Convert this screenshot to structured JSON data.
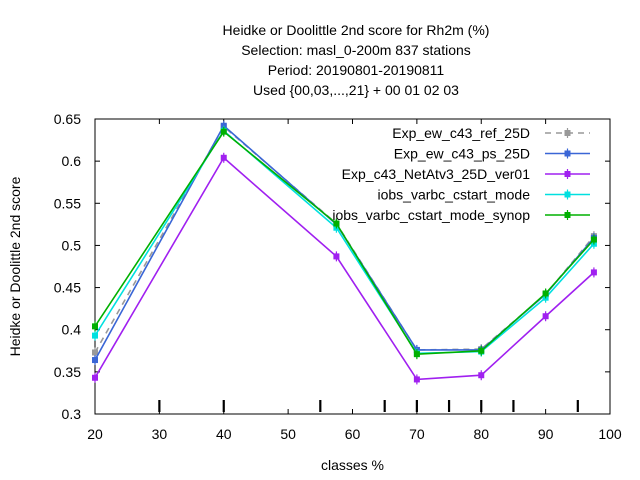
{
  "chart_data": {
    "type": "line",
    "title_lines": [
      "Heidke or Doolittle 2nd score  for Rh2m (%)",
      "Selection: masl_0-200m    837 stations",
      "Period: 20190801-20190811",
      "Used {00,03,...,21} + 00 01 02 03"
    ],
    "xlabel": "classes %",
    "ylabel": "Heidke or Doolittle 2nd score",
    "xlim": [
      20,
      100
    ],
    "ylim": [
      0.3,
      0.65
    ],
    "xticks": [
      20,
      30,
      40,
      50,
      60,
      70,
      80,
      90,
      100
    ],
    "yticks": [
      0.3,
      0.35,
      0.4,
      0.45,
      0.5,
      0.55,
      0.6,
      0.65
    ],
    "xtick_labels": [
      "20",
      "30",
      "40",
      "50",
      "60",
      "70",
      "80",
      "90",
      "100"
    ],
    "ytick_labels": [
      "0.3",
      "0.35",
      "0.4",
      "0.45",
      "0.5",
      "0.55",
      "0.6",
      "0.65"
    ],
    "bottom_marks": [
      30,
      40,
      55,
      65,
      70,
      75,
      80,
      85,
      95
    ],
    "grid": false,
    "legend_position": "top-right",
    "x": [
      20,
      40,
      57.5,
      70,
      80,
      90,
      97.5
    ],
    "series": [
      {
        "name": "Exp_ew_c43_ref_25D",
        "color": "#999999",
        "dashed": true,
        "values": [
          0.373,
          0.641,
          0.526,
          0.376,
          0.377,
          0.442,
          0.511
        ]
      },
      {
        "name": "Exp_ew_c43_ps_25D",
        "color": "#3a66d6",
        "dashed": false,
        "values": [
          0.364,
          0.642,
          0.525,
          0.376,
          0.376,
          0.442,
          0.509
        ]
      },
      {
        "name": "Exp_c43_NetAtv3_25D_ver01",
        "color": "#a020f0",
        "dashed": false,
        "values": [
          0.343,
          0.604,
          0.487,
          0.341,
          0.346,
          0.416,
          0.468
        ]
      },
      {
        "name": "iobs_varbc_cstart_mode",
        "color": "#00e0e0",
        "dashed": false,
        "values": [
          0.393,
          0.636,
          0.521,
          0.372,
          0.374,
          0.438,
          0.502
        ]
      },
      {
        "name": "iobs_varbc_cstart_mode_synop",
        "color": "#00b000",
        "dashed": false,
        "values": [
          0.404,
          0.635,
          0.526,
          0.371,
          0.375,
          0.443,
          0.507
        ]
      }
    ]
  }
}
